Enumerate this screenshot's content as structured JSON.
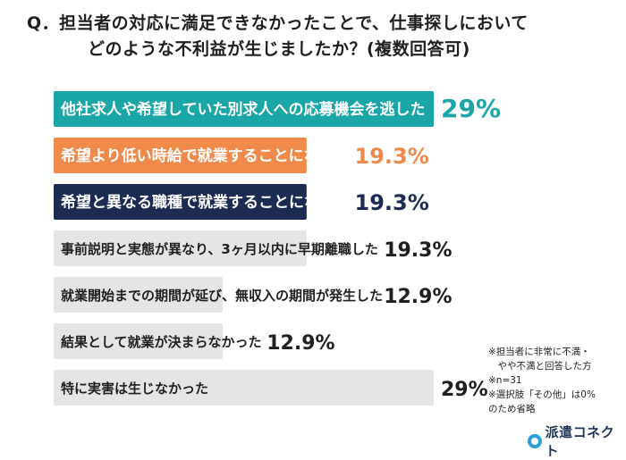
{
  "title": {
    "line1": "Q．担当者の対応に満足できなかったことで、仕事探しにおいて",
    "line2": "どのような不利益が生じましたか？(複数回答可)"
  },
  "chart_data": {
    "type": "bar",
    "orientation": "horizontal",
    "unit": "%",
    "categories": [
      "他社求人や希望していた別求人への応募機会を逃した",
      "希望より低い時給で就業することになった",
      "希望と異なる職種で就業することになった",
      "事前説明と実態が異なり、3ヶ月以内に早期離職した",
      "就業開始までの期間が延び、無収入の期間が発生した",
      "結果として就業が決まらなかった",
      "特に実害は生じなかった"
    ],
    "values": [
      29,
      19.3,
      19.3,
      19.3,
      12.9,
      12.9,
      29
    ],
    "value_labels": [
      "29%",
      "19.3%",
      "19.3%",
      "19.3%",
      "12.9%",
      "12.9%",
      "29%"
    ],
    "bar_colors": [
      "#1aa6a6",
      "#f08a4b",
      "#1c2b52",
      "#e5e5e5",
      "#e5e5e5",
      "#e5e5e5",
      "#e5e5e5"
    ],
    "value_colors": [
      "#1aa6a6",
      "#f08a4b",
      "#1c2b52",
      "#1f1f1f",
      "#1f1f1f",
      "#1f1f1f",
      "#1f1f1f"
    ],
    "label_colors": [
      "#ffffff",
      "#ffffff",
      "#ffffff",
      "#1f1f1f",
      "#1f1f1f",
      "#1f1f1f",
      "#1f1f1f"
    ],
    "xlim": [
      0,
      29
    ]
  },
  "notes": [
    "※担当者に非常に不満・",
    "　やや不満と回答した方",
    "※n=31",
    "※選択肢「その他」は0%",
    "のため省略"
  ],
  "logo": {
    "text": "派遣コネクト"
  }
}
